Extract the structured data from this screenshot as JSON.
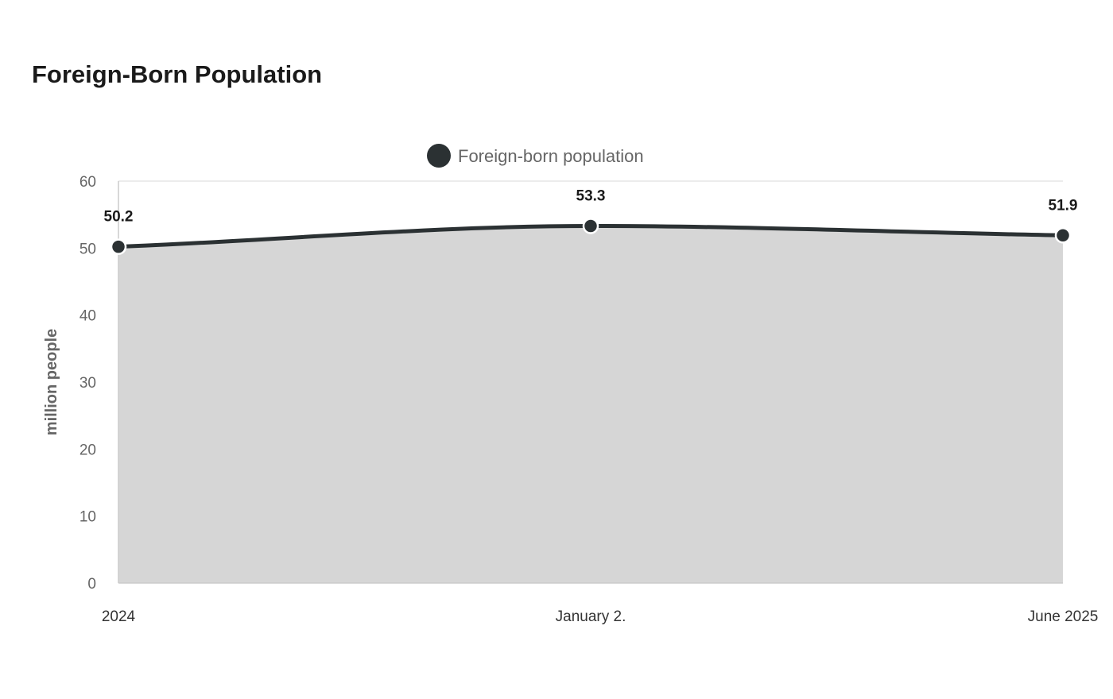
{
  "chart_data": {
    "type": "area",
    "title": "Foreign-Born Population",
    "ylabel": "million people",
    "xlabel": "",
    "categories": [
      "2024",
      "January 2.",
      "June 2025"
    ],
    "series": [
      {
        "name": "Foreign-born population",
        "values": [
          50.2,
          53.3,
          51.9
        ]
      }
    ],
    "data_labels": [
      "50.2",
      "53.3",
      "51.9"
    ],
    "ylim": [
      0,
      60
    ],
    "yticks": [
      0,
      10,
      20,
      30,
      40,
      50,
      60
    ],
    "grid": true,
    "legend_position": "top-center",
    "colors": {
      "line": "#2b3133",
      "area": "#d6d6d6",
      "grid": "#d9d9d9",
      "axis": "#cccccc"
    }
  }
}
